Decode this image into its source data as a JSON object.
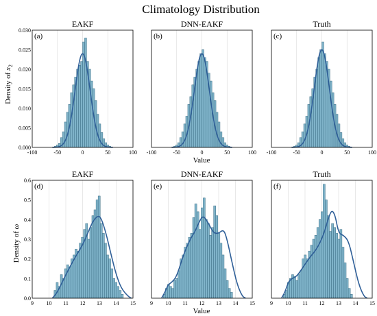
{
  "figure": {
    "title": "Climatology Distribution",
    "x_axis_label": "Value",
    "row_labels": [
      {
        "text": "Density of ",
        "var": "x",
        "sub": "2"
      },
      {
        "text": "Density of ",
        "var": "ω",
        "sub": ""
      }
    ]
  },
  "colors": {
    "bar": "#7fb3c9",
    "bar_edge": "#3d6f86",
    "kde": "#2f5f98"
  },
  "chart_data": [
    {
      "type": "bar",
      "label": "(a)",
      "title": "EAKF",
      "xlim": [
        -100,
        100
      ],
      "ylim": [
        0,
        0.03
      ],
      "xticks": [
        -100,
        -50,
        0,
        50,
        100
      ],
      "yticks": [
        0.0,
        0.005,
        0.01,
        0.015,
        0.02,
        0.025,
        0.03
      ],
      "ytick_labels": [
        "0.000",
        "0.005",
        "0.010",
        "0.015",
        "0.020",
        "0.025",
        "0.030"
      ],
      "bins": {
        "start": -56,
        "width": 4,
        "values": [
          0.0003,
          0.0006,
          0.001,
          0.0025,
          0.004,
          0.0065,
          0.009,
          0.011,
          0.014,
          0.016,
          0.018,
          0.02,
          0.021,
          0.022,
          0.027,
          0.028,
          0.022,
          0.02,
          0.017,
          0.015,
          0.012,
          0.0085,
          0.006,
          0.0038,
          0.0022,
          0.0012,
          0.0006,
          0.0003
        ]
      },
      "kde": {
        "mean": 0,
        "sd": 15,
        "peak": 0.024
      }
    },
    {
      "type": "bar",
      "label": "(b)",
      "title": "DNN-EAKF",
      "xlim": [
        -100,
        100
      ],
      "ylim": [
        0,
        0.03
      ],
      "xticks": [
        -100,
        -50,
        0,
        50,
        100
      ],
      "yticks": [
        0.0,
        0.005,
        0.01,
        0.015,
        0.02,
        0.025,
        0.03
      ],
      "ytick_labels": [],
      "bins": {
        "start": -56,
        "width": 4,
        "values": [
          0.0003,
          0.0006,
          0.0012,
          0.0025,
          0.004,
          0.006,
          0.008,
          0.011,
          0.013,
          0.016,
          0.018,
          0.02,
          0.022,
          0.024,
          0.025,
          0.023,
          0.022,
          0.019,
          0.017,
          0.014,
          0.012,
          0.009,
          0.0065,
          0.004,
          0.0025,
          0.0012,
          0.0006,
          0.0003
        ]
      },
      "kde": {
        "mean": 0,
        "sd": 15,
        "peak": 0.024
      }
    },
    {
      "type": "bar",
      "label": "(c)",
      "title": "Truth",
      "xlim": [
        -100,
        100
      ],
      "ylim": [
        0,
        0.03
      ],
      "xticks": [
        -100,
        -50,
        0,
        50,
        100
      ],
      "yticks": [
        0.0,
        0.005,
        0.01,
        0.015,
        0.02,
        0.025,
        0.03
      ],
      "ytick_labels": [],
      "bins": {
        "start": -56,
        "width": 4,
        "values": [
          0.0003,
          0.0006,
          0.0012,
          0.0025,
          0.004,
          0.006,
          0.008,
          0.011,
          0.013,
          0.015,
          0.018,
          0.02,
          0.023,
          0.025,
          0.027,
          0.024,
          0.022,
          0.02,
          0.017,
          0.014,
          0.011,
          0.0085,
          0.006,
          0.0038,
          0.0022,
          0.0012,
          0.0006,
          0.0003
        ]
      },
      "kde": {
        "mean": 0,
        "sd": 15,
        "peak": 0.025
      }
    },
    {
      "type": "bar",
      "label": "(d)",
      "title": "EAKF",
      "xlim": [
        9,
        15
      ],
      "ylim": [
        0,
        0.6
      ],
      "xticks": [
        9,
        10,
        11,
        12,
        13,
        14,
        15
      ],
      "yticks": [
        0.0,
        0.1,
        0.2,
        0.3,
        0.4,
        0.5,
        0.6
      ],
      "ytick_labels": [
        "0.0",
        "0.1",
        "0.2",
        "0.3",
        "0.4",
        "0.5",
        "0.6"
      ],
      "bins": {
        "start": 10.3,
        "width": 0.125,
        "values": [
          0.04,
          0.08,
          0.06,
          0.12,
          0.1,
          0.15,
          0.17,
          0.16,
          0.2,
          0.22,
          0.25,
          0.24,
          0.28,
          0.31,
          0.35,
          0.38,
          0.3,
          0.36,
          0.42,
          0.45,
          0.5,
          0.52,
          0.38,
          0.33,
          0.28,
          0.22,
          0.2,
          0.15,
          0.1,
          0.08,
          0.06,
          0.04,
          0.02
        ]
      },
      "kde": {
        "points": [
          [
            10.2,
            0
          ],
          [
            10.5,
            0.03
          ],
          [
            11.0,
            0.12
          ],
          [
            11.5,
            0.2
          ],
          [
            12.0,
            0.27
          ],
          [
            12.3,
            0.33
          ],
          [
            12.6,
            0.39
          ],
          [
            12.9,
            0.42
          ],
          [
            13.1,
            0.41
          ],
          [
            13.4,
            0.33
          ],
          [
            13.7,
            0.22
          ],
          [
            14.0,
            0.12
          ],
          [
            14.3,
            0.05
          ],
          [
            14.7,
            0.01
          ],
          [
            14.9,
            0
          ]
        ]
      }
    },
    {
      "type": "bar",
      "label": "(e)",
      "title": "DNN-EAKF",
      "xlim": [
        9,
        15
      ],
      "ylim": [
        0,
        0.6
      ],
      "xticks": [
        9,
        10,
        11,
        12,
        13,
        14,
        15
      ],
      "yticks": [
        0.0,
        0.1,
        0.2,
        0.3,
        0.4,
        0.5,
        0.6
      ],
      "ytick_labels": [],
      "bins": {
        "start": 9.7,
        "width": 0.125,
        "values": [
          0.02,
          0.05,
          0.07,
          0.06,
          0.05,
          0.09,
          0.1,
          0.14,
          0.2,
          0.22,
          0.26,
          0.28,
          0.31,
          0.33,
          0.41,
          0.48,
          0.44,
          0.35,
          0.46,
          0.51,
          0.4,
          0.38,
          0.32,
          0.36,
          0.47,
          0.42,
          0.33,
          0.28,
          0.22,
          0.15,
          0.09,
          0.05,
          0.03
        ]
      },
      "kde": {
        "points": [
          [
            9.6,
            0
          ],
          [
            9.8,
            0.03
          ],
          [
            10.0,
            0.07
          ],
          [
            10.2,
            0.08
          ],
          [
            10.5,
            0.11
          ],
          [
            10.9,
            0.22
          ],
          [
            11.3,
            0.3
          ],
          [
            11.6,
            0.34
          ],
          [
            11.9,
            0.4
          ],
          [
            12.1,
            0.42
          ],
          [
            12.4,
            0.38
          ],
          [
            12.7,
            0.33
          ],
          [
            13.0,
            0.33
          ],
          [
            13.3,
            0.35
          ],
          [
            13.5,
            0.3
          ],
          [
            13.8,
            0.18
          ],
          [
            14.1,
            0.07
          ],
          [
            14.4,
            0.01
          ],
          [
            14.6,
            0
          ]
        ]
      }
    },
    {
      "type": "bar",
      "label": "(f)",
      "title": "Truth",
      "xlim": [
        9,
        15
      ],
      "ylim": [
        0,
        0.6
      ],
      "xticks": [
        9,
        10,
        11,
        12,
        13,
        14,
        15
      ],
      "yticks": [
        0.0,
        0.1,
        0.2,
        0.3,
        0.4,
        0.5,
        0.6
      ],
      "ytick_labels": [],
      "bins": {
        "start": 9.7,
        "width": 0.125,
        "values": [
          0.02,
          0.04,
          0.08,
          0.1,
          0.12,
          0.11,
          0.09,
          0.12,
          0.14,
          0.2,
          0.22,
          0.2,
          0.24,
          0.27,
          0.3,
          0.32,
          0.36,
          0.4,
          0.44,
          0.58,
          0.5,
          0.42,
          0.34,
          0.38,
          0.36,
          0.33,
          0.3,
          0.35,
          0.26,
          0.18,
          0.1,
          0.05,
          0.02
        ]
      },
      "kde": {
        "points": [
          [
            9.6,
            0
          ],
          [
            9.8,
            0.03
          ],
          [
            10.0,
            0.08
          ],
          [
            10.2,
            0.1
          ],
          [
            10.5,
            0.11
          ],
          [
            10.9,
            0.16
          ],
          [
            11.3,
            0.21
          ],
          [
            11.7,
            0.25
          ],
          [
            12.1,
            0.32
          ],
          [
            12.4,
            0.41
          ],
          [
            12.6,
            0.45
          ],
          [
            12.8,
            0.42
          ],
          [
            13.0,
            0.33
          ],
          [
            13.3,
            0.32
          ],
          [
            13.6,
            0.29
          ],
          [
            13.9,
            0.18
          ],
          [
            14.2,
            0.07
          ],
          [
            14.5,
            0.01
          ],
          [
            14.7,
            0
          ]
        ]
      }
    }
  ]
}
